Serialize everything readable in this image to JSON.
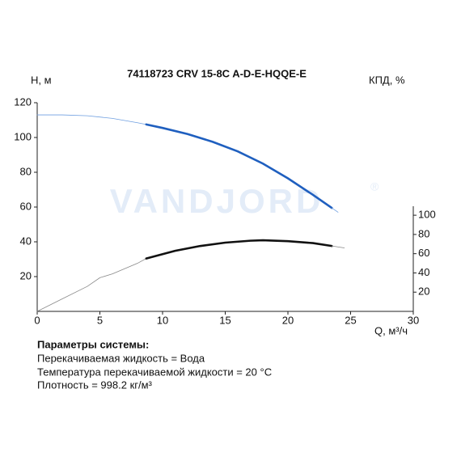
{
  "chart_data": {
    "type": "line",
    "title": "74118723 CRV 15-8C A-D-E-HQQE-E",
    "y_label": "H, м",
    "y2_label": "КПД, %",
    "x_label": "Q, м³/ч",
    "watermark": "VANDJORD",
    "watermark_mark": "®",
    "xlim": [
      0,
      30
    ],
    "xticks": [
      0,
      5,
      10,
      15,
      20,
      25,
      30
    ],
    "ylim": [
      0,
      120
    ],
    "yticks": [
      20,
      40,
      60,
      80,
      100,
      120
    ],
    "y2lim": [
      0,
      217
    ],
    "y2ticks": [
      20,
      40,
      60,
      80,
      100
    ],
    "series": [
      {
        "axis": "y",
        "color": "#6f9fe0",
        "width": 0.8,
        "x": [
          0,
          2,
          4,
          6,
          8,
          8.7
        ],
        "values": [
          113,
          113,
          112.5,
          111,
          108.5,
          107.5
        ]
      },
      {
        "axis": "y",
        "color": "#1f5fbf",
        "width": 2.6,
        "x": [
          8.7,
          10,
          12,
          14,
          16,
          18,
          20,
          22,
          23.5
        ],
        "values": [
          107.5,
          105.5,
          102,
          97.5,
          92,
          85,
          76.5,
          67,
          59.5
        ]
      },
      {
        "axis": "y",
        "color": "#6f9fe0",
        "width": 0.8,
        "x": [
          23.5,
          24
        ],
        "values": [
          59.5,
          57
        ]
      },
      {
        "axis": "y2",
        "color": "#888888",
        "width": 0.8,
        "x": [
          0,
          2,
          4,
          5,
          6,
          8,
          8.7
        ],
        "values": [
          0,
          13,
          26,
          35,
          39,
          50,
          55
        ]
      },
      {
        "axis": "y2",
        "color": "#111111",
        "width": 2.6,
        "x": [
          8.7,
          11,
          13,
          15,
          17,
          18,
          20,
          22,
          23.5
        ],
        "values": [
          55,
          63,
          68,
          71.5,
          73.5,
          74,
          73,
          71,
          68
        ]
      },
      {
        "axis": "y2",
        "color": "#888888",
        "width": 0.8,
        "x": [
          23.5,
          24.5
        ],
        "values": [
          68,
          66
        ]
      }
    ]
  },
  "parameters": {
    "heading": "Параметры системы:",
    "lines": [
      "Перекачиваемая жидкость = Вода",
      "Температура перекачиваемой жидкости = 20 °C",
      "Плотность = 998.2 кг/м³"
    ]
  }
}
